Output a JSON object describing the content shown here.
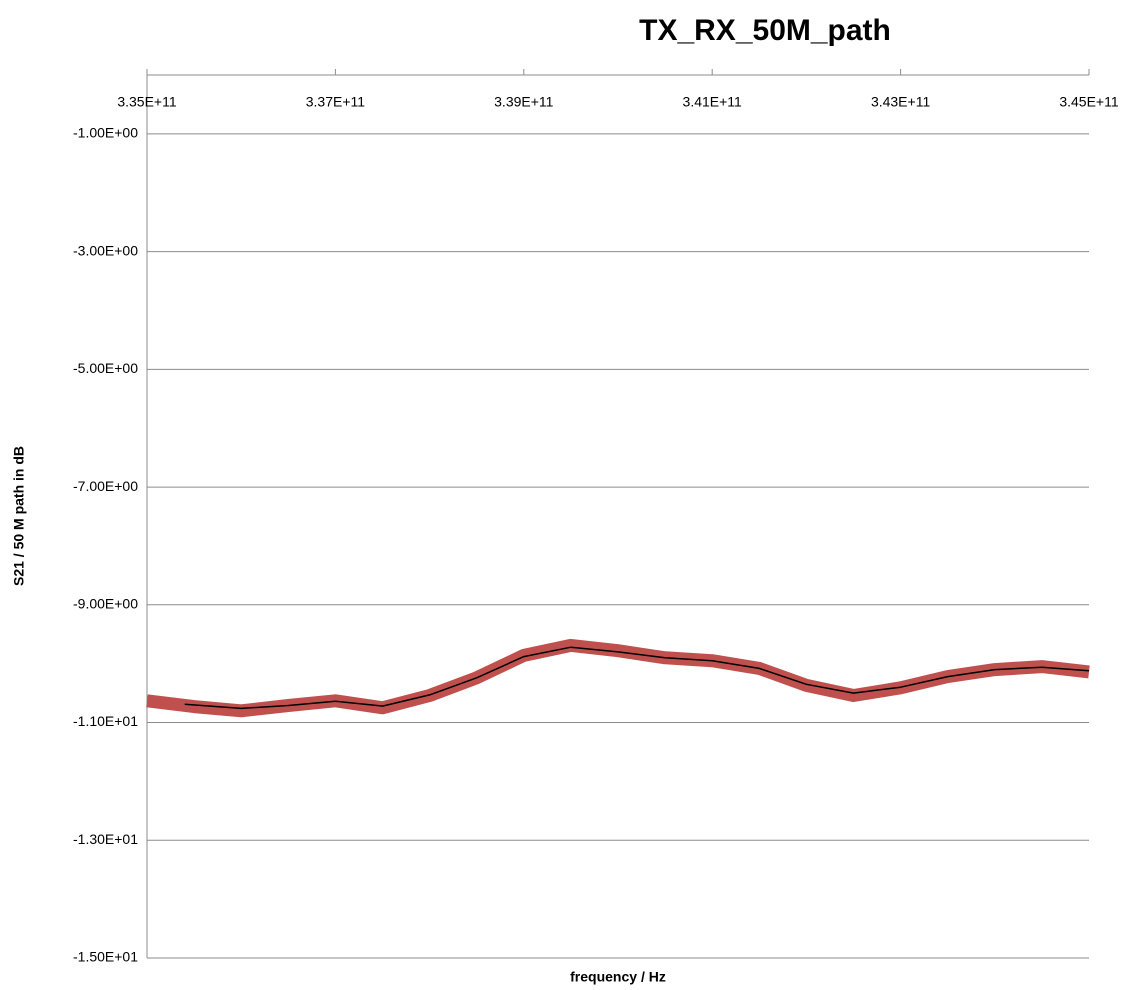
{
  "chart_data": {
    "type": "line",
    "title": "TX_RX_50M_path",
    "xlabel": "frequency / Hz",
    "ylabel": "S21 / 50 M path in dB",
    "xlim": [
      335000000000,
      345000000000
    ],
    "xticks": [
      {
        "value": 335000000000,
        "label": "3.35E+11"
      },
      {
        "value": 337000000000,
        "label": "3.37E+11"
      },
      {
        "value": 339000000000,
        "label": "3.39E+11"
      },
      {
        "value": 341000000000,
        "label": "3.41E+11"
      },
      {
        "value": 343000000000,
        "label": "3.43E+11"
      },
      {
        "value": 345000000000,
        "label": "3.45E+11"
      }
    ],
    "ylim": [
      -15,
      0
    ],
    "yticks": [
      {
        "value": -1,
        "label": "-1.00E+00"
      },
      {
        "value": -3,
        "label": "-3.00E+00"
      },
      {
        "value": -5,
        "label": "-5.00E+00"
      },
      {
        "value": -7,
        "label": "-7.00E+00"
      },
      {
        "value": -9,
        "label": "-9.00E+00"
      },
      {
        "value": -11,
        "label": "-1.10E+01"
      },
      {
        "value": -13,
        "label": "-1.30E+01"
      },
      {
        "value": -15,
        "label": "-1.50E+01"
      }
    ],
    "grid": true,
    "series": [
      {
        "color": "#c0504d",
        "x": [
          335000000000,
          335500000000,
          336000000000,
          336500000000,
          337000000000,
          337500000000,
          338000000000,
          338500000000,
          339000000000,
          339500000000,
          340000000000,
          340500000000,
          341000000000,
          341500000000,
          342000000000,
          342500000000,
          343000000000,
          343500000000,
          344000000000,
          344500000000,
          345000000000
        ],
        "values": [
          -10.63,
          -10.73,
          -10.8,
          -10.71,
          -10.63,
          -10.75,
          -10.54,
          -10.24,
          -9.86,
          -9.69,
          -9.78,
          -9.9,
          -9.95,
          -10.08,
          -10.37,
          -10.54,
          -10.41,
          -10.22,
          -10.1,
          -10.05,
          -10.14
        ]
      },
      {
        "color": "#000000",
        "x": [
          335400000000,
          336000000000,
          336500000000,
          337000000000,
          337500000000,
          338000000000,
          338500000000,
          339000000000,
          339500000000,
          340000000000,
          340500000000,
          341000000000,
          341500000000,
          342000000000,
          342500000000,
          343000000000,
          343500000000,
          344000000000,
          344500000000,
          345000000000
        ],
        "values": [
          -10.69,
          -10.76,
          -10.71,
          -10.64,
          -10.72,
          -10.53,
          -10.24,
          -9.88,
          -9.72,
          -9.8,
          -9.9,
          -9.95,
          -10.08,
          -10.35,
          -10.5,
          -10.4,
          -10.22,
          -10.1,
          -10.06,
          -10.12
        ]
      }
    ]
  }
}
